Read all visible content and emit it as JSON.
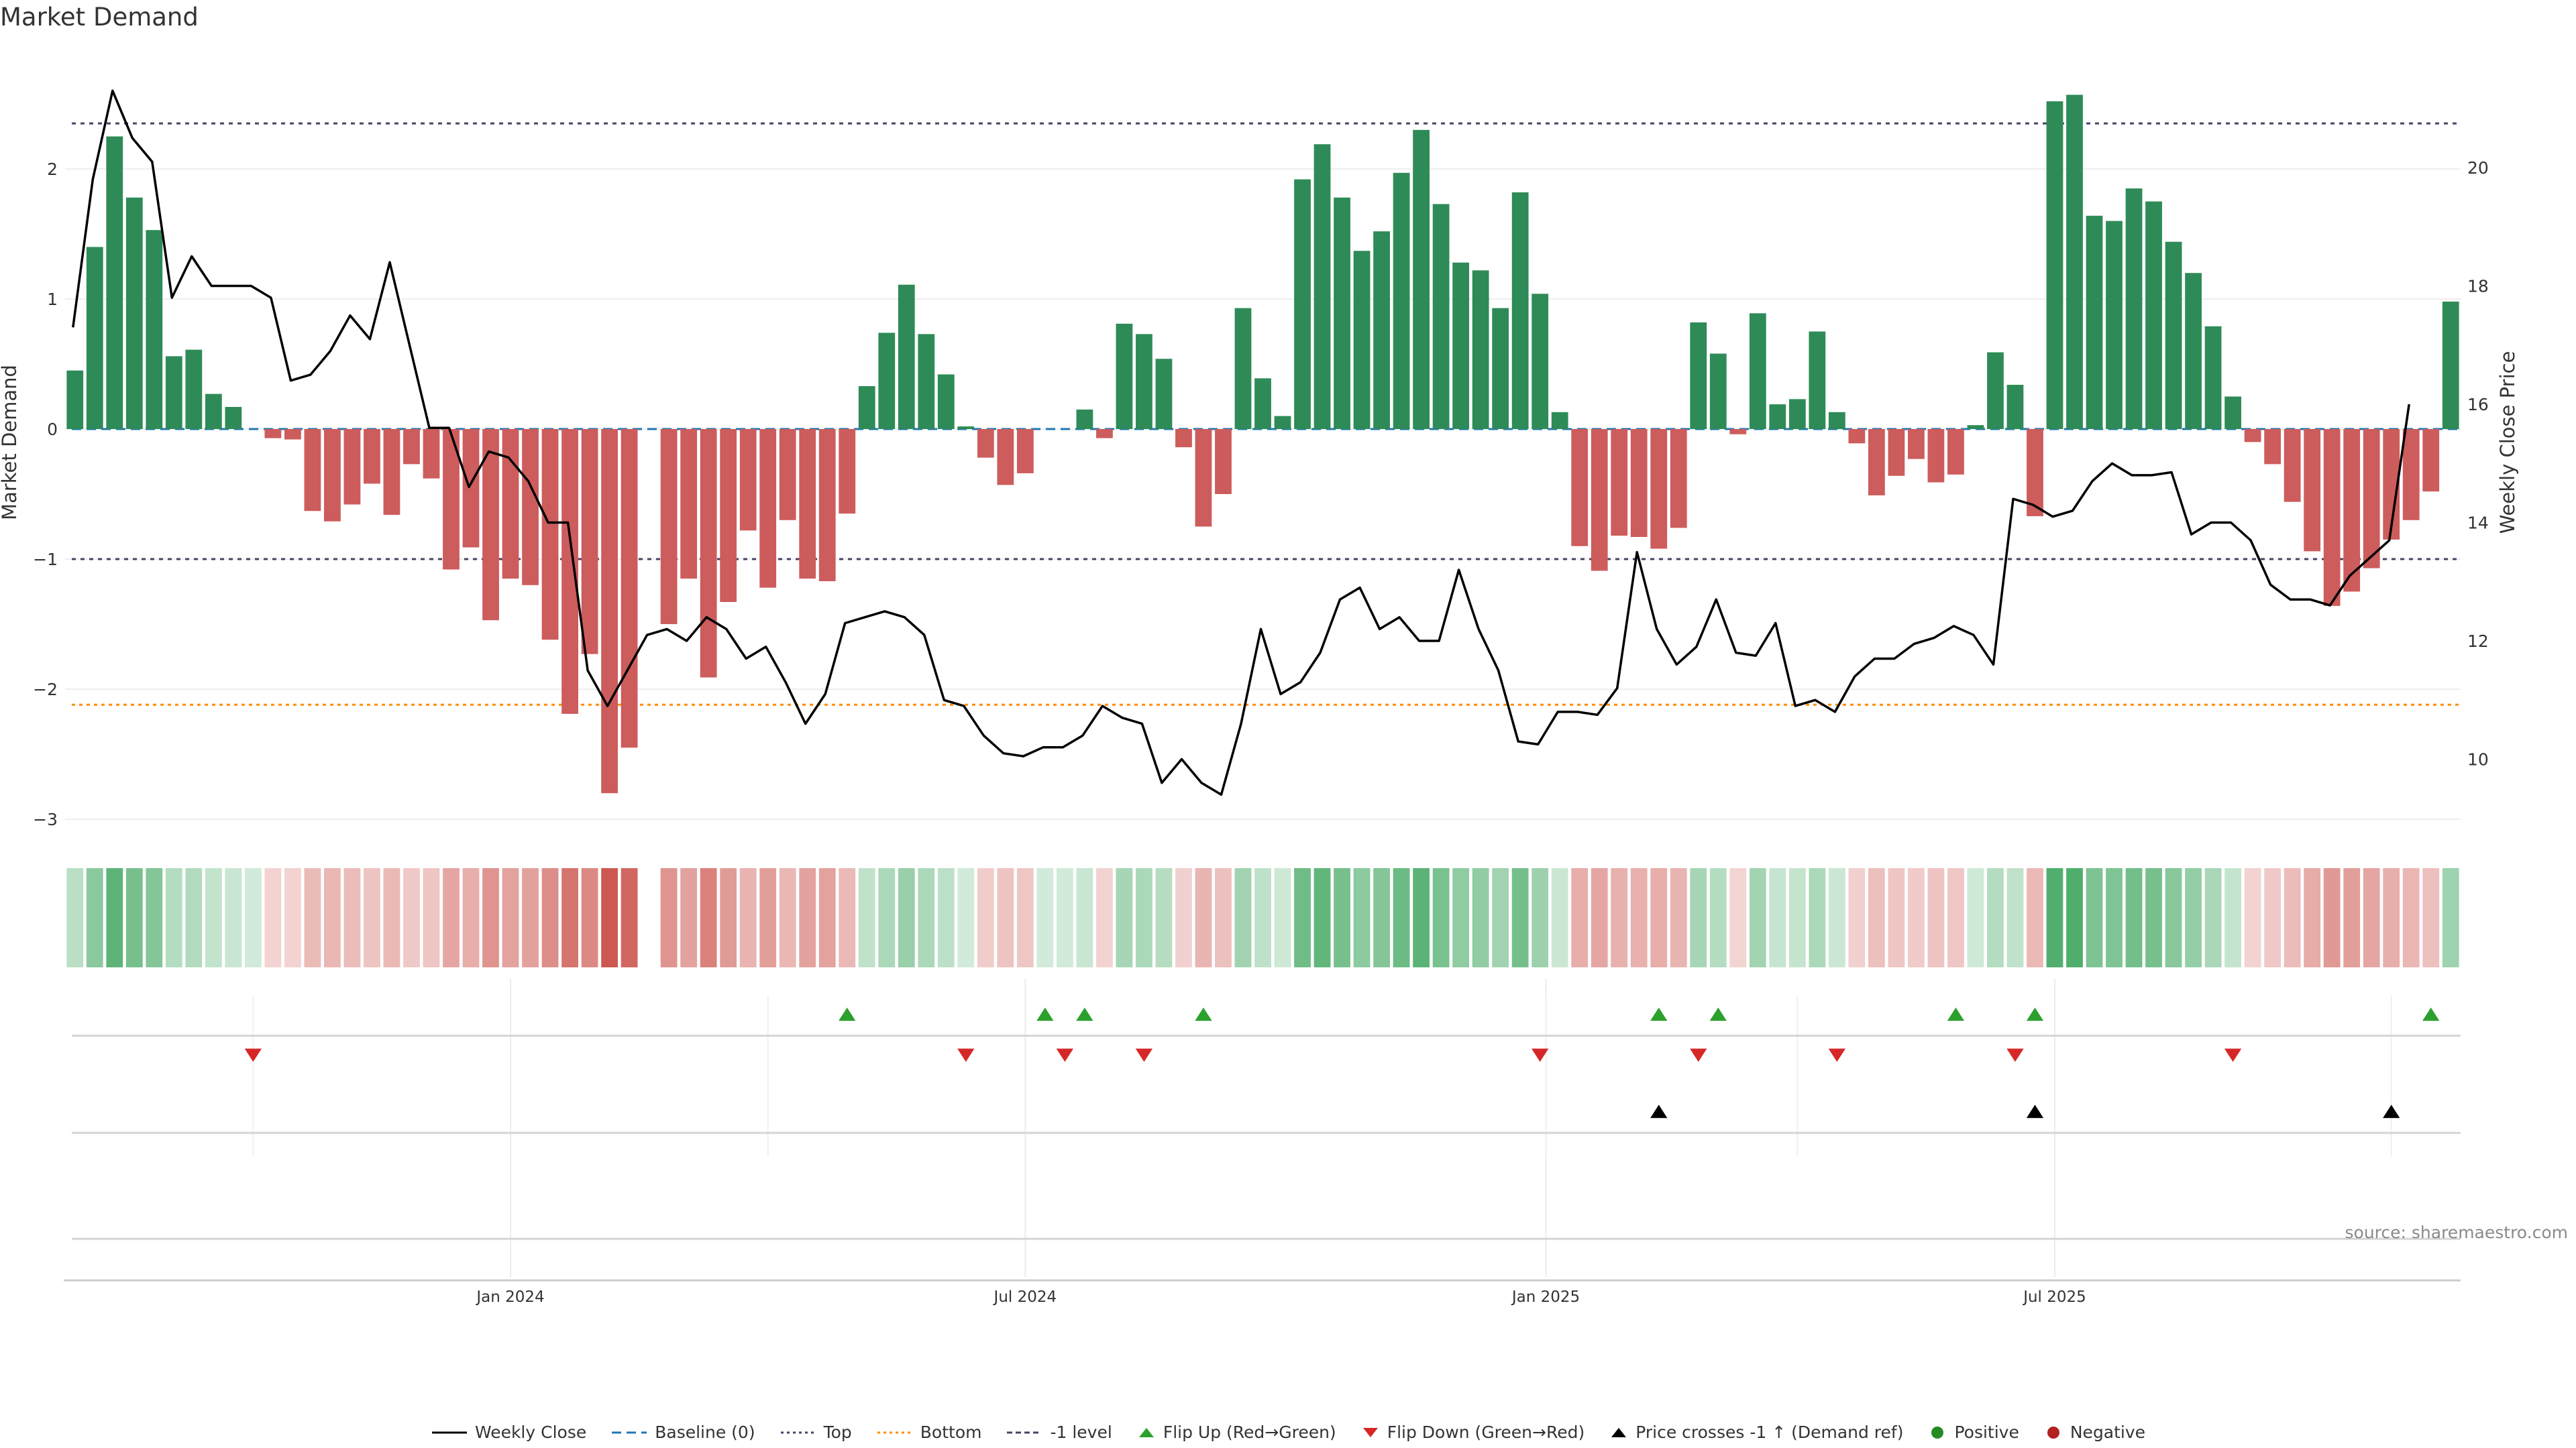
{
  "title": "Market Demand",
  "source": "source: sharemaestro.com",
  "colors": {
    "positive": "#2e8b57",
    "negative": "#cd5c5c",
    "price": "#000000",
    "baseline": "#1f77b4",
    "top": "#444466",
    "bottom": "#ff8c00",
    "minus1": "#444466",
    "flip_up": "#2ca02c",
    "flip_down": "#d62728"
  },
  "chart_data": {
    "type": "bar",
    "title": "Market Demand",
    "ylabel": "Market Demand",
    "y2label": "Weekly Close Price",
    "ylim": [
      -3.2,
      2.6
    ],
    "y2lim": [
      9.0,
      22.0
    ],
    "yticks": [
      "2",
      "1",
      "0",
      "−1",
      "−2",
      "−3"
    ],
    "ytick_values": [
      2,
      1,
      0,
      -1,
      -2,
      -3
    ],
    "y2ticks": [
      "20",
      "18",
      "16",
      "14",
      "12",
      "10"
    ],
    "y2tick_values": [
      20,
      18,
      16,
      14,
      12,
      10
    ],
    "xticks": [
      "Jan 2024",
      "Jul 2024",
      "Jan 2025",
      "Jul 2025"
    ],
    "xtick_weeks": [
      22,
      48,
      74.3,
      100
    ],
    "reference_lines": {
      "top": 2.35,
      "bottom": -2.12,
      "minus1": -1.0,
      "baseline": 0
    },
    "demand": [
      0.45,
      1.4,
      2.25,
      1.78,
      1.53,
      0.56,
      0.61,
      0.27,
      0.17,
      0.0,
      -0.07,
      -0.08,
      -0.63,
      -0.71,
      -0.58,
      -0.42,
      -0.66,
      -0.27,
      -0.38,
      -1.08,
      -0.91,
      -1.47,
      -1.15,
      -1.2,
      -1.62,
      -2.19,
      -1.73,
      -2.8,
      -2.45,
      0.0,
      -1.5,
      -1.15,
      -1.91,
      -1.33,
      -0.78,
      -1.22,
      -0.7,
      -1.15,
      -1.17,
      -0.65,
      0.33,
      0.74,
      1.11,
      0.73,
      0.42,
      0.02,
      -0.22,
      -0.43,
      -0.34,
      0.0,
      0.0,
      0.15,
      -0.07,
      0.81,
      0.73,
      0.54,
      -0.14,
      -0.75,
      -0.5,
      0.93,
      0.39,
      0.1,
      1.92,
      2.19,
      1.78,
      1.37,
      1.52,
      1.97,
      2.3,
      1.73,
      1.28,
      1.22,
      0.93,
      1.82,
      1.04,
      0.13,
      -0.9,
      -1.09,
      -0.82,
      -0.83,
      -0.92,
      -0.76,
      0.82,
      0.58,
      -0.04,
      0.89,
      0.19,
      0.23,
      0.75,
      0.13,
      -0.11,
      -0.51,
      -0.36,
      -0.23,
      -0.41,
      -0.35,
      0.03,
      0.59,
      0.34,
      -0.67,
      2.52,
      2.57,
      1.64,
      1.6,
      1.85,
      1.75,
      1.44,
      1.2,
      0.79,
      0.25,
      -0.1,
      -0.27,
      -0.56,
      -0.94,
      -1.36,
      -1.25,
      -1.07,
      -0.85,
      -0.7,
      -0.48,
      0.98
    ],
    "price": [
      17.3,
      19.8,
      21.3,
      20.5,
      20.1,
      17.8,
      18.5,
      18.0,
      18.0,
      18.0,
      17.8,
      16.4,
      16.5,
      16.9,
      17.5,
      17.1,
      18.4,
      17.0,
      15.6,
      15.6,
      14.6,
      15.2,
      15.1,
      14.7,
      14.0,
      14.0,
      11.5,
      10.9,
      11.5,
      12.1,
      12.2,
      12.0,
      12.4,
      12.2,
      11.7,
      11.9,
      11.3,
      10.6,
      11.1,
      12.3,
      12.4,
      12.5,
      12.4,
      12.1,
      11.0,
      10.9,
      10.4,
      10.1,
      10.05,
      10.2,
      10.2,
      10.4,
      10.9,
      10.7,
      10.6,
      9.6,
      10.0,
      9.6,
      9.4,
      10.6,
      12.2,
      11.1,
      11.3,
      11.8,
      12.7,
      12.9,
      12.2,
      12.4,
      12.0,
      12.0,
      13.2,
      12.2,
      11.5,
      10.3,
      10.25,
      10.8,
      10.8,
      10.75,
      11.2,
      13.5,
      12.2,
      11.6,
      11.9,
      12.7,
      11.8,
      11.75,
      12.3,
      10.9,
      11.0,
      10.8,
      11.4,
      11.7,
      11.7,
      11.95,
      12.05,
      12.25,
      12.1,
      11.6,
      14.4,
      14.3,
      14.1,
      14.2,
      14.7,
      15.0,
      14.8,
      14.8,
      14.85,
      13.8,
      14.0,
      14.0,
      13.7,
      12.95,
      12.7,
      12.7,
      12.6,
      13.1,
      13.4,
      13.7,
      16.0
    ],
    "flip_up_weeks": [
      39,
      49,
      51,
      57,
      80,
      83,
      95,
      99,
      119
    ],
    "flip_down_weeks": [
      9,
      45,
      50,
      54,
      74,
      82,
      89,
      98,
      109
    ],
    "price_cross_weeks": [
      80,
      99,
      117
    ]
  },
  "legend": [
    {
      "key": "line",
      "label": "Weekly Close"
    },
    {
      "key": "baseline",
      "label": "Baseline (0)"
    },
    {
      "key": "top",
      "label": "Top"
    },
    {
      "key": "bottom",
      "label": "Bottom"
    },
    {
      "key": "minus1",
      "label": "-1 level"
    },
    {
      "key": "flip_up",
      "label": "Flip Up (Red→Green)"
    },
    {
      "key": "flip_down",
      "label": "Flip Down (Green→Red)"
    },
    {
      "key": "price_cross",
      "label": "Price crosses -1 ↑ (Demand ref)"
    },
    {
      "key": "positive",
      "label": "Positive"
    },
    {
      "key": "negative",
      "label": "Negative"
    }
  ]
}
